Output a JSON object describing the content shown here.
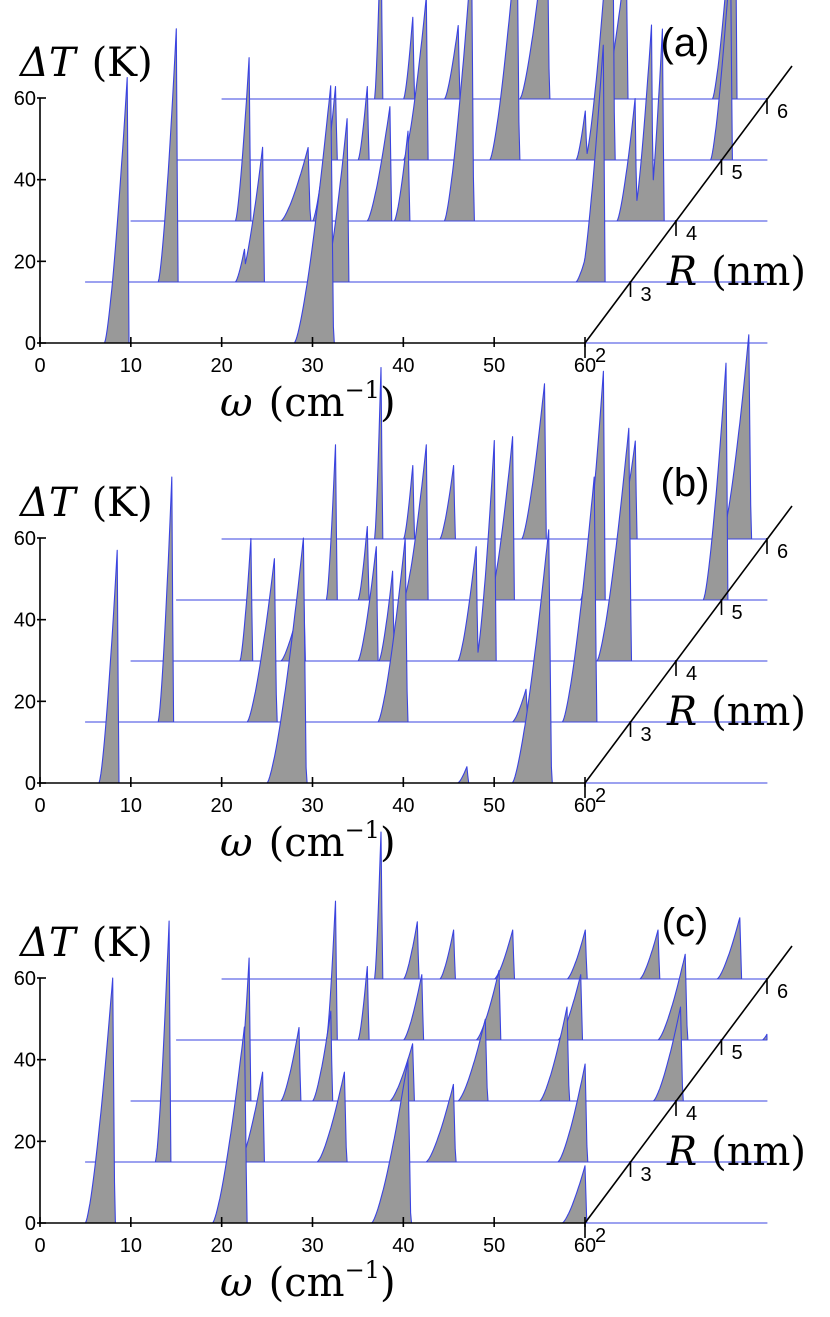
{
  "chart_data": [
    {
      "type": "area",
      "panel_label": "(a)",
      "ylabel": {
        "symbol": "ΔT",
        "unit": "(K)"
      },
      "xlabel": {
        "symbol": "ω",
        "unit": "(cm",
        "exponent": "−1",
        "close": ")"
      },
      "zlabel": {
        "symbol": "R",
        "unit": "(nm)"
      },
      "x_ticks": [
        "0",
        "10",
        "20",
        "30",
        "40",
        "50",
        "60"
      ],
      "y_ticks": [
        "0",
        "20",
        "40",
        "60"
      ],
      "z_ticks": [
        "2",
        "3",
        "4",
        "5",
        "6"
      ],
      "xlim": [
        0,
        60
      ],
      "ylim": [
        0,
        60
      ],
      "fill_color": "#999999",
      "line_color": "#3a43e0",
      "series": [
        {
          "r": "2",
          "peaks": [
            [
              9.6,
              65,
              2.5
            ],
            [
              32,
              63,
              4
            ]
          ],
          "tail": [
            0,
            1
          ]
        },
        {
          "r": "3",
          "peaks": [
            [
              10,
              62,
              2
            ],
            [
              17.5,
              8,
              1
            ],
            [
              19.5,
              33,
              2.5
            ],
            [
              28.8,
              40,
              2.5
            ],
            [
              55.5,
              10,
              1.5
            ],
            [
              57,
              58,
              2.5
            ]
          ],
          "tail": [
            0,
            1
          ]
        },
        {
          "r": "4",
          "peaks": [
            [
              13,
              40,
              1.5
            ],
            [
              19.5,
              18,
              3
            ],
            [
              21.5,
              20,
              1.5
            ],
            [
              28.5,
              28,
              2.5
            ],
            [
              30.5,
              22,
              1.5
            ],
            [
              37.5,
              65,
              3
            ],
            [
              55.5,
              30,
              2
            ],
            [
              57.3,
              48,
              2
            ],
            [
              58.5,
              47,
              1.5
            ]
          ],
          "tail": [
            0,
            1
          ]
        },
        {
          "r": "5",
          "peaks": [
            [
              17.5,
              18,
              1
            ],
            [
              21,
              18,
              1
            ],
            [
              27.5,
              40,
              2.5
            ],
            [
              37.5,
              56,
              3
            ],
            [
              45,
              12,
              1
            ],
            [
              48,
              70,
              3
            ],
            [
              61,
              50,
              2.2
            ]
          ],
          "tail": [
            0,
            1
          ]
        },
        {
          "r": "6",
          "peaks": [
            [
              17.5,
              42,
              0.7
            ],
            [
              21,
              20,
              1
            ],
            [
              26,
              18,
              1.5
            ],
            [
              35.8,
              45,
              3
            ],
            [
              44.5,
              35,
              2.5
            ],
            [
              56.5,
              57,
              2.5
            ],
            [
              67.5,
              55,
              2.5
            ],
            [
              79,
              60,
              2
            ]
          ],
          "tail": [
            0,
            1
          ]
        }
      ]
    },
    {
      "type": "area",
      "panel_label": "(b)",
      "ylabel": {
        "symbol": "ΔT",
        "unit": "(K)"
      },
      "xlabel": {
        "symbol": "ω",
        "unit": "(cm",
        "exponent": "−1",
        "close": ")"
      },
      "zlabel": {
        "symbol": "R",
        "unit": "(nm)"
      },
      "x_ticks": [
        "0",
        "10",
        "20",
        "30",
        "40",
        "50",
        "60"
      ],
      "y_ticks": [
        "0",
        "20",
        "40",
        "60"
      ],
      "z_ticks": [
        "2",
        "3",
        "4",
        "5",
        "6"
      ],
      "xlim": [
        0,
        60
      ],
      "ylim": [
        0,
        60
      ],
      "fill_color": "#999999",
      "line_color": "#3a43e0",
      "series": [
        {
          "r": "2",
          "peaks": [
            [
              8.5,
              57,
              2
            ],
            [
              29,
              60,
              4
            ],
            [
              47,
              4,
              1
            ],
            [
              56,
              62,
              4
            ]
          ],
          "tail": [
            0,
            1
          ]
        },
        {
          "r": "3",
          "peaks": [
            [
              9.5,
              60,
              1.5
            ],
            [
              20.8,
              40,
              3
            ],
            [
              35.2,
              45,
              3
            ],
            [
              48.5,
              8,
              1.5
            ],
            [
              50.8,
              8,
              1.5
            ],
            [
              56,
              60,
              3.5
            ]
          ],
          "tail": [
            0,
            1
          ]
        },
        {
          "r": "4",
          "peaks": [
            [
              13.2,
              30,
              1.2
            ],
            [
              19,
              18,
              2.5
            ],
            [
              27,
              28,
              2
            ],
            [
              28.8,
              22,
              1.5
            ],
            [
              38,
              28,
              2
            ],
            [
              40,
              54,
              2
            ],
            [
              54.8,
              57,
              3.5
            ]
          ],
          "tail": [
            0,
            1
          ]
        },
        {
          "r": "5",
          "peaks": [
            [
              17.5,
              38,
              1
            ],
            [
              21,
              18,
              1
            ],
            [
              27.5,
              38,
              2.5
            ],
            [
              37,
              40,
              2.5
            ],
            [
              47,
              56,
              2.5
            ],
            [
              60.5,
              58,
              2.5
            ],
            [
              73,
              56,
              2.5
            ]
          ],
          "tail": [
            0,
            1
          ]
        },
        {
          "r": "6",
          "peaks": [
            [
              17.5,
              42,
              0.7
            ],
            [
              21,
              18,
              1
            ],
            [
              25.5,
              18,
              1.5
            ],
            [
              35.5,
              38,
              2.5
            ],
            [
              45.5,
              24,
              2
            ],
            [
              58,
              50,
              3
            ],
            [
              69,
              38,
              3
            ],
            [
              80,
              60,
              2.5
            ]
          ],
          "tail": [
            0,
            1
          ]
        }
      ]
    },
    {
      "type": "area",
      "panel_label": "(c)",
      "ylabel": {
        "symbol": "ΔT",
        "unit": "(K)"
      },
      "xlabel": {
        "symbol": "ω",
        "unit": "(cm",
        "exponent": "−1",
        "close": ")"
      },
      "zlabel": {
        "symbol": "R",
        "unit": "(nm)"
      },
      "x_ticks": [
        "0",
        "10",
        "20",
        "30",
        "40",
        "50",
        "60"
      ],
      "y_ticks": [
        "0",
        "20",
        "40",
        "60"
      ],
      "z_ticks": [
        "2",
        "3",
        "4",
        "5",
        "6"
      ],
      "xlim": [
        0,
        60
      ],
      "ylim": [
        0,
        60
      ],
      "fill_color": "#999999",
      "line_color": "#3a43e0",
      "series": [
        {
          "r": "2",
          "peaks": [
            [
              8,
              60,
              3
            ],
            [
              22.5,
              48,
              3.5
            ],
            [
              40.5,
              40,
              4
            ],
            [
              60,
              14,
              2.5
            ]
          ],
          "tail": [
            0,
            1
          ]
        },
        {
          "r": "3",
          "peaks": [
            [
              9.2,
              59,
              1.5
            ],
            [
              19.5,
              22,
              2.5
            ],
            [
              28.5,
              22,
              3
            ],
            [
              40.5,
              19,
              3
            ],
            [
              55,
              24,
              3
            ]
          ],
          "tail": [
            0,
            1
          ]
        },
        {
          "r": "4",
          "peaks": [
            [
              13,
              35,
              1.2
            ],
            [
              18.5,
              18,
              2
            ],
            [
              22,
              22,
              2
            ],
            [
              31,
              14,
              2.5
            ],
            [
              39,
              20,
              3
            ],
            [
              48,
              23,
              3
            ],
            [
              60.5,
              23,
              3
            ],
            [
              73,
              26,
              3
            ]
          ],
          "tail": [
            0,
            1
          ]
        },
        {
          "r": "5",
          "peaks": [
            [
              17.5,
              34,
              1
            ],
            [
              21,
              18,
              1
            ],
            [
              27,
              16,
              2
            ],
            [
              35.5,
              17,
              2.5
            ],
            [
              44.5,
              16,
              2.5
            ],
            [
              56,
              21,
              3
            ],
            [
              67.5,
              17,
              3
            ],
            [
              79.5,
              25,
              3
            ]
          ],
          "tail": [
            0,
            1
          ]
        },
        {
          "r": "6",
          "peaks": [
            [
              17.5,
              36,
              0.7
            ],
            [
              21.5,
              14,
              1.5
            ],
            [
              25.5,
              12,
              1.5
            ],
            [
              32,
              12,
              2
            ],
            [
              40,
              12,
              2
            ],
            [
              48,
              12,
              2
            ],
            [
              57,
              15,
              2.5
            ],
            [
              67,
              17,
              3
            ],
            [
              78,
              18,
              3
            ],
            [
              88,
              20,
              3
            ]
          ],
          "tail": [
            0,
            1
          ]
        }
      ]
    }
  ]
}
